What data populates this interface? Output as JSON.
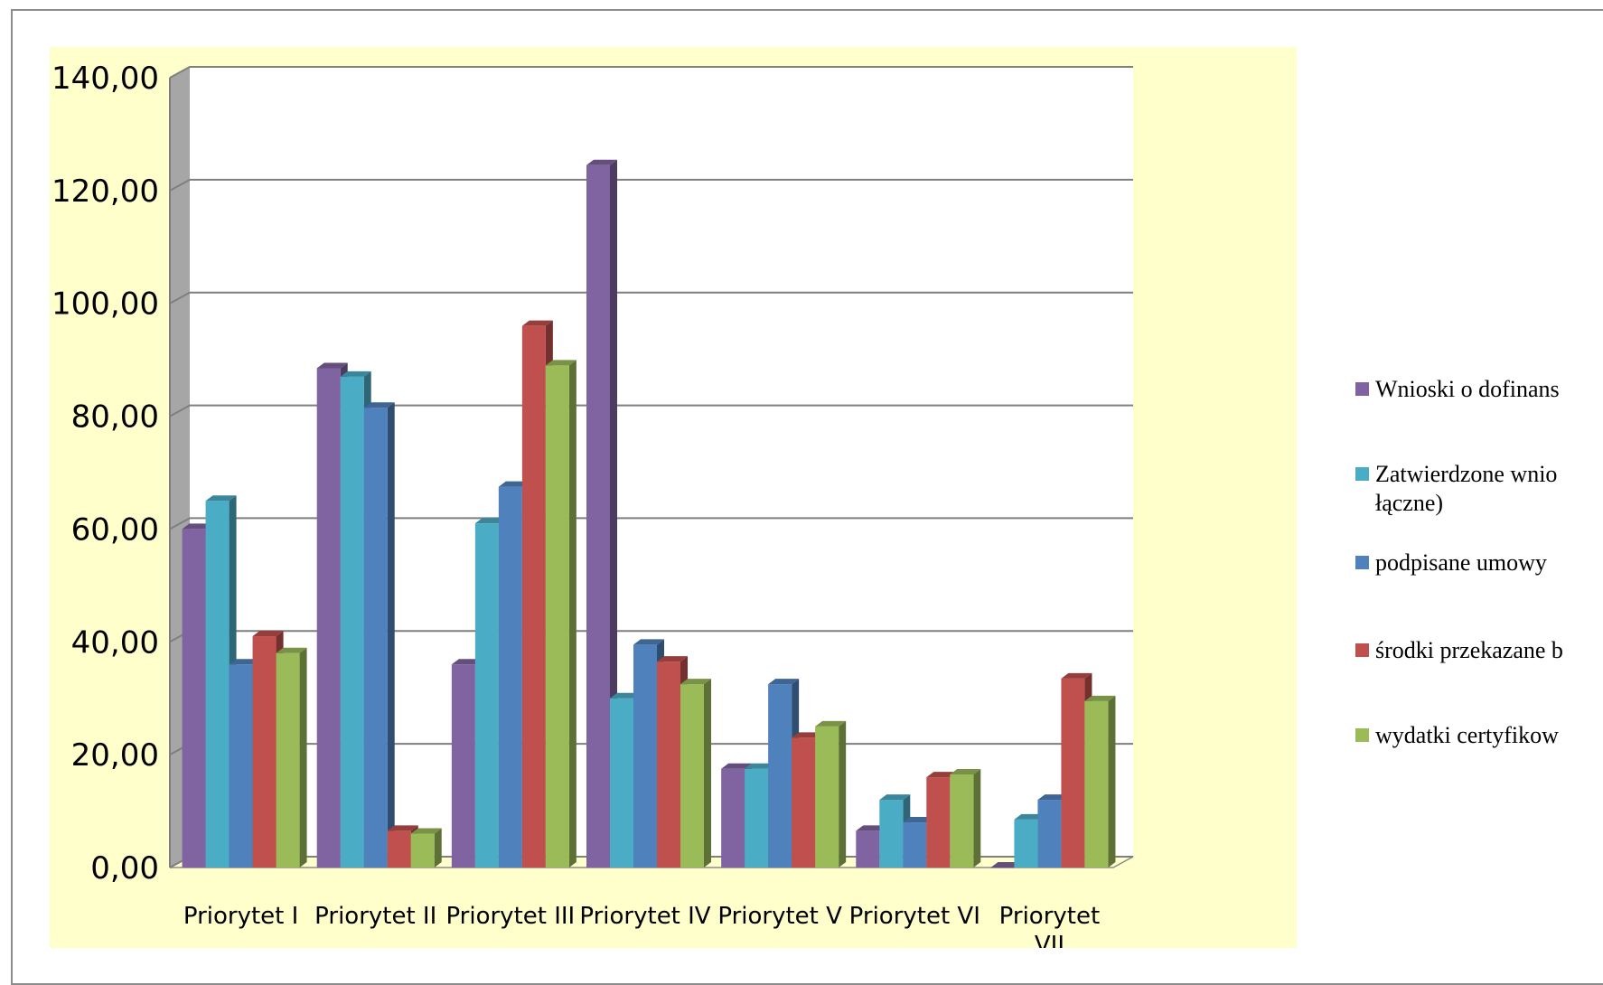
{
  "chart_data": {
    "type": "bar",
    "categories": [
      "Priorytet I",
      "Priorytet II",
      "Priorytet III",
      "Priorytet IV",
      "Priorytet V",
      "Priorytet VI",
      "Priorytet VII"
    ],
    "category_display": [
      [
        "Priorytet I"
      ],
      [
        "Priorytet II"
      ],
      [
        "Priorytet III"
      ],
      [
        "Priorytet IV"
      ],
      [
        "Priorytet V"
      ],
      [
        "Priorytet VI"
      ],
      [
        "Priorytet",
        "VII"
      ]
    ],
    "yticks": [
      "0,00",
      "20,00",
      "40,00",
      "60,00",
      "80,00",
      "100,00",
      "120,00",
      "140,00"
    ],
    "ylim": [
      0,
      140
    ],
    "grid": true,
    "legend_position": "right",
    "series": [
      {
        "name": "Wnioski o dofinansowanie",
        "legend_lines": [
          "Wnioski o dofinans"
        ],
        "color": "#8064A2",
        "values": [
          60.0,
          88.5,
          36.0,
          124.5,
          17.5,
          6.5,
          0.0
        ]
      },
      {
        "name": "Zatwierdzone wnioski (łączne)",
        "legend_lines": [
          "Zatwierdzone wnio",
          "łączne)"
        ],
        "color": "#4BACC6",
        "values": [
          65.0,
          87.0,
          61.0,
          30.0,
          17.5,
          12.0,
          8.5
        ]
      },
      {
        "name": "podpisane umowy",
        "legend_lines": [
          "podpisane umowy"
        ],
        "color": "#4F81BD",
        "values": [
          36.0,
          81.5,
          67.5,
          39.5,
          32.5,
          8.0,
          12.0
        ]
      },
      {
        "name": "środki przekazane beneficjentom",
        "legend_lines": [
          "środki przekazane b"
        ],
        "color": "#C0504D",
        "values": [
          41.0,
          6.5,
          96.0,
          36.5,
          23.0,
          16.0,
          33.5
        ]
      },
      {
        "name": "wydatki certyfikowane",
        "legend_lines": [
          "wydatki certyfikow"
        ],
        "color": "#9BBB59",
        "values": [
          38.0,
          6.0,
          89.0,
          32.5,
          25.0,
          16.5,
          29.5
        ]
      }
    ]
  }
}
